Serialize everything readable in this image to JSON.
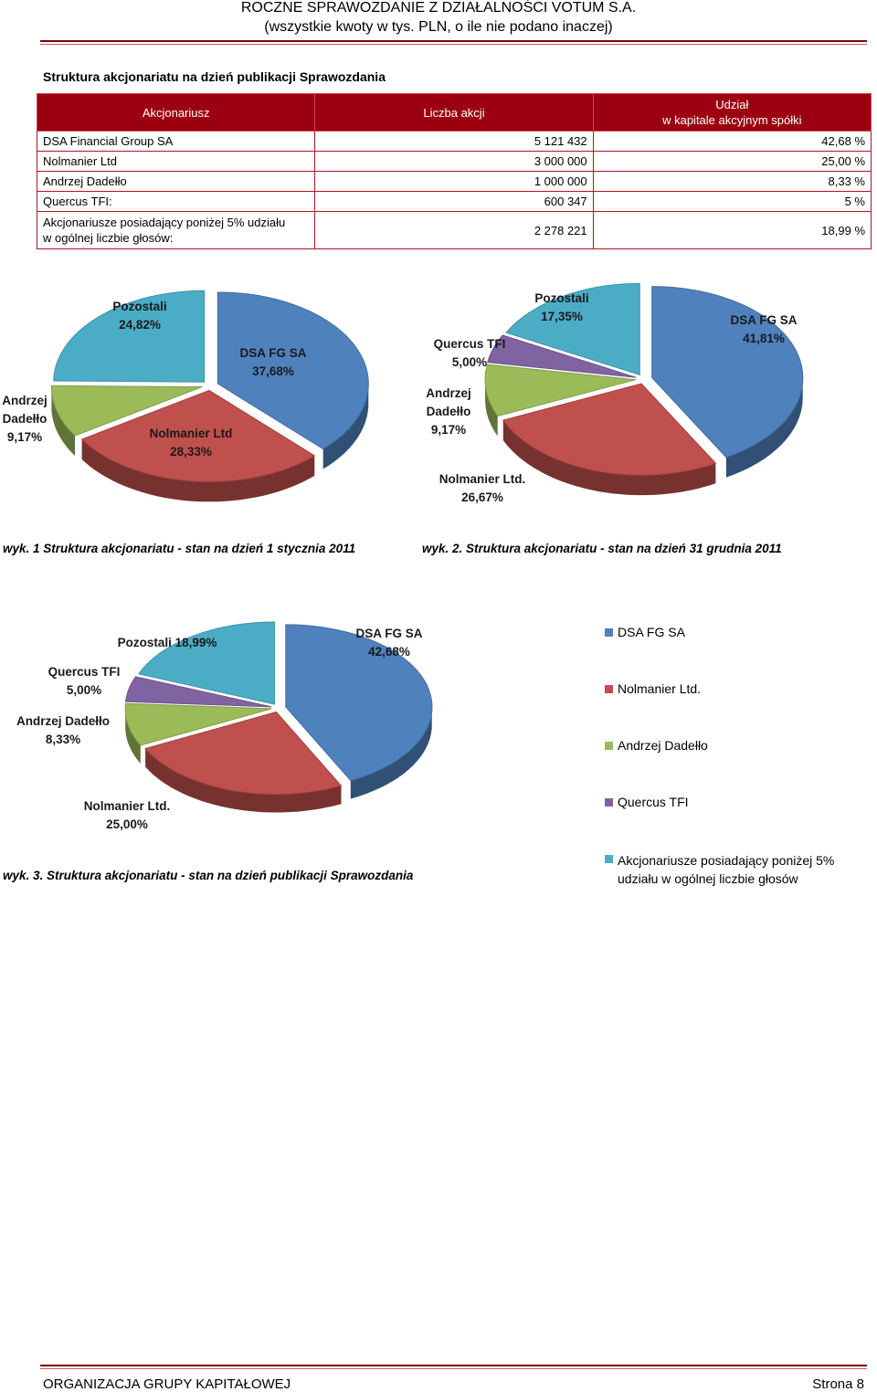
{
  "header": {
    "line1": "ROCZNE SPRAWOZDANIE Z DZIAŁALNOŚCI VOTUM S.A.",
    "line2": "(wszystkie kwoty w tys. PLN, o ile nie podano inaczej)"
  },
  "section_title": "Struktura akcjonariatu na dzień publikacji Sprawozdania",
  "table": {
    "headers": [
      "Akcjonariusz",
      "Liczba akcji",
      "Udział",
      "w kapitale akcyjnym spółki"
    ],
    "rows": [
      {
        "name": "DSA Financial Group SA",
        "shares": "5 121 432",
        "pct": "42,68 %"
      },
      {
        "name": "Nolmanier Ltd",
        "shares": "3 000 000",
        "pct": "25,00 %"
      },
      {
        "name": "Andrzej Dadełło",
        "shares": "1 000 000",
        "pct": "8,33 %"
      },
      {
        "name": "Quercus TFI:",
        "shares": "600 347",
        "pct": "5 %"
      },
      {
        "name": "Akcjonariusze posiadający poniżej 5% udziału",
        "name2": "w ogólnej liczbie głosów:",
        "shares": "2 278 221",
        "pct": "18,99 %"
      }
    ]
  },
  "colors": {
    "dsa": "#4f81bd",
    "nolmanier": "#c0504d",
    "dadello": "#9bbb59",
    "quercus": "#8064a2",
    "pozostali": "#4bacc6",
    "rule": "#7a0000",
    "table_header": "#9c0010"
  },
  "chart_data": [
    {
      "type": "pie",
      "title": "wyk. 1 Struktura akcjonariatu - stan na dzień 1 stycznia 2011",
      "slices": [
        {
          "label": "DSA FG SA",
          "value": 37.68,
          "text": "37,68%"
        },
        {
          "label": "Nolmanier Ltd",
          "value": 28.33,
          "text": "28,33%"
        },
        {
          "label": "Andrzej Dadełło",
          "value": 9.17,
          "text": "9,17%"
        },
        {
          "label": "Pozostali",
          "value": 24.82,
          "text": "24,82%"
        }
      ]
    },
    {
      "type": "pie",
      "title": "wyk. 2. Struktura akcjonariatu - stan na dzień 31 grudnia 2011",
      "slices": [
        {
          "label": "DSA FG SA",
          "value": 41.81,
          "text": "41,81%"
        },
        {
          "label": "Nolmanier Ltd.",
          "value": 26.67,
          "text": "26,67%"
        },
        {
          "label": "Andrzej Dadełło",
          "value": 9.17,
          "text": "9,17%"
        },
        {
          "label": "Quercus TFI",
          "value": 5.0,
          "text": "5,00%"
        },
        {
          "label": "Pozostali",
          "value": 17.35,
          "text": "17,35%"
        }
      ]
    },
    {
      "type": "pie",
      "title": "wyk. 3. Struktura akcjonariatu - stan na dzień publikacji Sprawozdania",
      "slices": [
        {
          "label": "DSA FG SA",
          "value": 42.68,
          "text": "42,68%"
        },
        {
          "label": "Nolmanier Ltd.",
          "value": 25.0,
          "text": "25,00%"
        },
        {
          "label": "Andrzej Dadełło",
          "value": 8.33,
          "text": "8,33%"
        },
        {
          "label": "Quercus TFI",
          "value": 5.0,
          "text": "5,00%"
        },
        {
          "label": "Pozostali",
          "value": 18.99,
          "text": "18,99%"
        }
      ],
      "legend": [
        "DSA FG SA",
        "Nolmanier Ltd.",
        "Andrzej Dadełło",
        "Quercus TFI",
        "Akcjonariusze posiadający poniżej 5% udziału w ogólnej liczbie głosów"
      ]
    }
  ],
  "labels": {
    "c1": {
      "pozostali": [
        "Pozostali",
        "24,82%"
      ],
      "dsa": [
        "DSA FG SA",
        "37,68%"
      ],
      "dadello": [
        "Andrzej",
        "Dadełło",
        "9,17%"
      ],
      "nolmanier": [
        "Nolmanier Ltd",
        "28,33%"
      ]
    },
    "c2": {
      "pozostali": [
        "Pozostali",
        "17,35%"
      ],
      "dsa": [
        "DSA FG SA",
        "41,81%"
      ],
      "quercus": [
        "Quercus TFI",
        "5,00%"
      ],
      "dadello": [
        "Andrzej",
        "Dadełło",
        "9,17%"
      ],
      "nolmanier": [
        "Nolmanier Ltd.",
        "26,67%"
      ]
    },
    "c3": {
      "pozostali": [
        "Pozostali 18,99%"
      ],
      "dsa": [
        "DSA FG SA",
        "42,68%"
      ],
      "quercus": [
        "Quercus TFI",
        "5,00%"
      ],
      "dadello": [
        "Andrzej Dadełło",
        "8,33%"
      ],
      "nolmanier": [
        "Nolmanier Ltd.",
        "25,00%"
      ]
    }
  },
  "footer": {
    "left": "ORGANIZACJA GRUPY KAPITAŁOWEJ",
    "right": "Strona 8"
  }
}
